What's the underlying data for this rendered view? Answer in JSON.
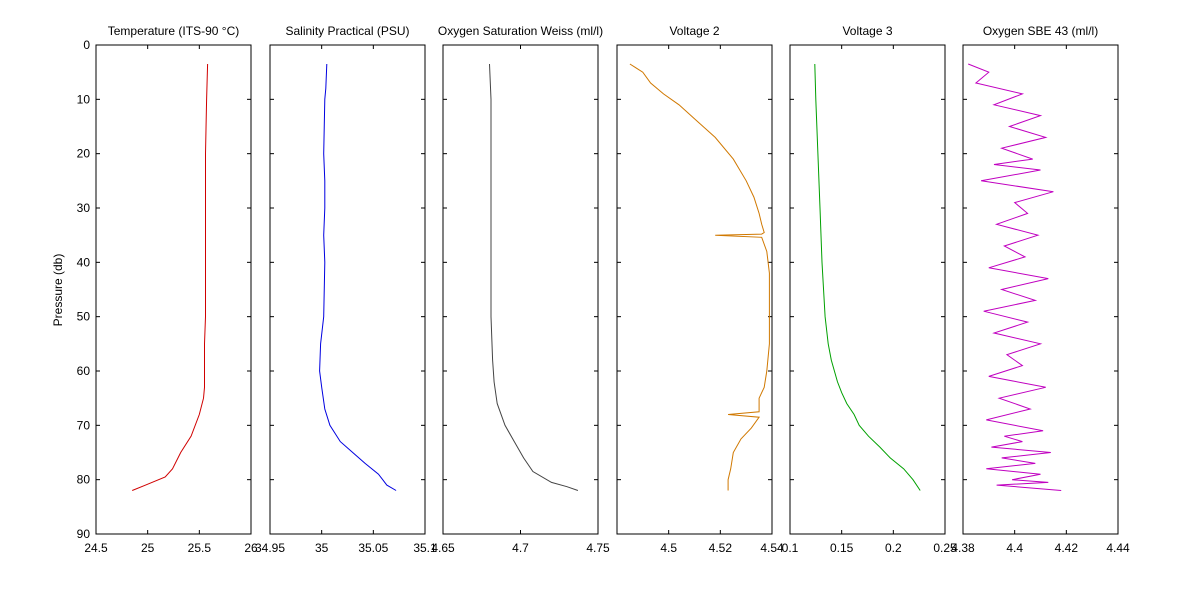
{
  "figure": {
    "ylabel": "Pressure (db)",
    "y_ticks": [
      0,
      10,
      20,
      30,
      40,
      50,
      60,
      70,
      80,
      90
    ],
    "y_tick_labels": [
      "0",
      "10",
      "20",
      "30",
      "40",
      "50",
      "60",
      "70",
      "80",
      "90"
    ],
    "ylim": [
      0,
      90
    ],
    "y_reversed": true
  },
  "chart_data": [
    {
      "type": "line",
      "title": "Temperature (ITS-90 °C)",
      "xlim": [
        24.5,
        26
      ],
      "x_ticks": [
        24.5,
        25,
        25.5,
        26
      ],
      "x_tick_labels": [
        "24.5",
        "25",
        "25.5",
        "26"
      ],
      "ylabel": "Pressure (db)",
      "color": "#d00000",
      "series": [
        {
          "x": [
            25.58,
            25.57,
            25.56,
            25.56,
            25.56,
            25.56,
            25.56,
            25.56,
            25.55,
            25.55,
            25.55,
            25.54,
            25.5,
            25.42,
            25.32,
            25.24,
            25.17,
            24.98,
            24.85
          ],
          "y": [
            3.5,
            10,
            20,
            30,
            36,
            40,
            45,
            50,
            55,
            60,
            63,
            65,
            68,
            72,
            75,
            78,
            79.5,
            81,
            82
          ]
        }
      ]
    },
    {
      "type": "line",
      "title": "Salinity Practical (PSU)",
      "xlim": [
        34.95,
        35.1
      ],
      "x_ticks": [
        34.95,
        35,
        35.05,
        35.1
      ],
      "x_tick_labels": [
        "34.95",
        "35",
        "35.05",
        "35.1"
      ],
      "color": "#0000e0",
      "series": [
        {
          "x": [
            35.005,
            35.004,
            35.003,
            35.002,
            35.003,
            35.003,
            35.002,
            35.003,
            35.002,
            34.999,
            34.998,
            35.0,
            35.003,
            35.008,
            35.018,
            35.03,
            35.042,
            35.055,
            35.063,
            35.072
          ],
          "y": [
            3.5,
            8,
            10,
            20,
            25,
            30,
            35,
            40,
            50,
            55,
            60,
            63,
            67,
            70,
            73,
            75,
            77,
            79,
            81,
            82
          ]
        }
      ]
    },
    {
      "type": "line",
      "title": "Oxygen Saturation Weiss (ml/l)",
      "xlim": [
        4.65,
        4.75
      ],
      "x_ticks": [
        4.65,
        4.7,
        4.75
      ],
      "x_tick_labels": [
        "4.65",
        "4.7",
        "4.75"
      ],
      "color": "#444444",
      "series": [
        {
          "x": [
            4.68,
            4.681,
            4.681,
            4.681,
            4.681,
            4.681,
            4.682,
            4.683,
            4.685,
            4.69,
            4.696,
            4.702,
            4.708,
            4.72,
            4.73,
            4.737
          ],
          "y": [
            3.5,
            10,
            20,
            30,
            40,
            50,
            58,
            62,
            66,
            70,
            73,
            76,
            78.5,
            80.5,
            81.3,
            82
          ]
        }
      ]
    },
    {
      "type": "line",
      "title": "Voltage 2",
      "xlim": [
        4.48,
        4.54
      ],
      "x_ticks": [
        4.5,
        4.52,
        4.54
      ],
      "x_tick_labels": [
        "4.5",
        "4.52",
        "4.54"
      ],
      "color": "#d07800",
      "series": [
        {
          "x": [
            4.485,
            4.49,
            4.493,
            4.498,
            4.504,
            4.511,
            4.518,
            4.525,
            4.53,
            4.533,
            4.535,
            4.536,
            4.537,
            4.536,
            4.518,
            4.536,
            4.538,
            4.539,
            4.539,
            4.539,
            4.538,
            4.537,
            4.535,
            4.535,
            4.523,
            4.535,
            4.532,
            4.528,
            4.525,
            4.524,
            4.523,
            4.523
          ],
          "y": [
            3.5,
            5,
            7,
            9,
            11,
            14,
            17,
            21,
            25,
            28,
            31,
            33,
            34.5,
            34.8,
            35,
            35.4,
            38,
            42,
            48,
            55,
            60,
            63,
            65,
            67.5,
            68,
            68.5,
            70.5,
            72.5,
            75,
            78,
            80,
            82
          ]
        }
      ]
    },
    {
      "type": "line",
      "title": "Voltage 3",
      "xlim": [
        0.1,
        0.25
      ],
      "x_ticks": [
        0.1,
        0.15,
        0.2,
        0.25
      ],
      "x_tick_labels": [
        "0.1",
        "0.15",
        "0.2",
        "0.25"
      ],
      "color": "#00a000",
      "series": [
        {
          "x": [
            0.124,
            0.125,
            0.127,
            0.129,
            0.131,
            0.134,
            0.137,
            0.14,
            0.143,
            0.146,
            0.15,
            0.155,
            0.162,
            0.167,
            0.176,
            0.187,
            0.197,
            0.21,
            0.219,
            0.226
          ],
          "y": [
            3.5,
            10,
            20,
            30,
            40,
            50,
            55,
            58,
            60,
            62,
            64,
            66,
            68,
            70,
            72,
            74,
            76,
            78,
            80,
            82
          ]
        }
      ]
    },
    {
      "type": "line",
      "title": "Oxygen SBE 43 (ml/l)",
      "xlim": [
        4.38,
        4.44
      ],
      "x_ticks": [
        4.38,
        4.4,
        4.42,
        4.44
      ],
      "x_tick_labels": [
        "4.38",
        "4.4",
        "4.42",
        "4.44"
      ],
      "color": "#c000c0",
      "series": [
        {
          "x": [
            4.382,
            4.39,
            4.385,
            4.403,
            4.392,
            4.41,
            4.398,
            4.412,
            4.395,
            4.407,
            4.392,
            4.41,
            4.387,
            4.415,
            4.4,
            4.405,
            4.393,
            4.409,
            4.396,
            4.404,
            4.39,
            4.413,
            4.395,
            4.408,
            4.388,
            4.405,
            4.392,
            4.41,
            4.397,
            4.403,
            4.39,
            4.412,
            4.394,
            4.406,
            4.389,
            4.411,
            4.396,
            4.403,
            4.391,
            4.414,
            4.395,
            4.408,
            4.389,
            4.41,
            4.399,
            4.413,
            4.393,
            4.418
          ],
          "y": [
            3.5,
            5,
            7,
            9,
            11,
            13,
            15,
            17,
            19,
            21,
            22,
            23,
            25,
            27,
            29,
            31,
            33,
            35,
            37,
            39,
            41,
            43,
            45,
            47,
            49,
            51,
            53,
            55,
            57,
            59,
            61,
            63,
            65,
            67,
            69,
            71,
            72,
            73,
            74,
            75,
            76,
            77,
            78,
            79,
            80,
            80.5,
            81,
            82
          ]
        }
      ]
    }
  ]
}
